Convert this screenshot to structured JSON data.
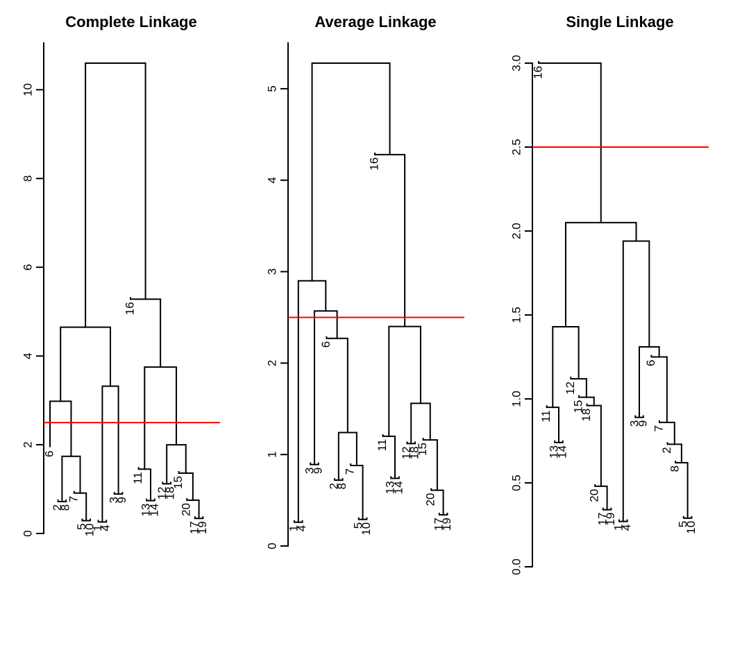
{
  "chart_data": [
    {
      "type": "dendrogram",
      "title": "Complete Linkage",
      "yticks": [
        "0",
        "2",
        "4",
        "6",
        "8",
        "10"
      ],
      "ylim": [
        0,
        10.6
      ],
      "cut_height": 2.5,
      "cut_color": "#ff0000",
      "leaves": [
        {
          "label": "6",
          "h": 1.93
        },
        {
          "label": "2",
          "h": 0.72
        },
        {
          "label": "8",
          "h": 0.72
        },
        {
          "label": "7",
          "h": 0.91
        },
        {
          "label": "5",
          "h": 0.29
        },
        {
          "label": "10",
          "h": 0.29
        },
        {
          "label": "1",
          "h": 0.26
        },
        {
          "label": "4",
          "h": 0.26
        },
        {
          "label": "3",
          "h": 0.89
        },
        {
          "label": "9",
          "h": 0.89
        },
        {
          "label": "16",
          "h": 5.28
        },
        {
          "label": "11",
          "h": 1.45
        },
        {
          "label": "13",
          "h": 0.74
        },
        {
          "label": "14",
          "h": 0.74
        },
        {
          "label": "12",
          "h": 1.12
        },
        {
          "label": "18",
          "h": 1.12
        },
        {
          "label": "15",
          "h": 1.36
        },
        {
          "label": "20",
          "h": 0.75
        },
        {
          "label": "17",
          "h": 0.34
        },
        {
          "label": "19",
          "h": 0.34
        }
      ],
      "merges": [
        {
          "a": 4,
          "b": 5,
          "h": 0.29
        },
        {
          "a": 6,
          "b": 7,
          "h": 0.26
        },
        {
          "a": 18,
          "b": 19,
          "h": 0.34
        },
        {
          "a": 1,
          "b": 2,
          "h": 0.72
        },
        {
          "a": 12,
          "b": 13,
          "h": 0.74
        },
        {
          "a": 17,
          "c": 2,
          "h": 0.75
        },
        {
          "a": 8,
          "b": 9,
          "h": 0.89
        },
        {
          "a": 3,
          "c": 0,
          "h": 0.91
        },
        {
          "a": 14,
          "b": 15,
          "h": 1.12
        },
        {
          "a": 16,
          "c": 5,
          "h": 1.36
        },
        {
          "a": 11,
          "c": 4,
          "h": 1.45
        },
        {
          "c": 3,
          "d": 7,
          "h": 1.74
        },
        {
          "c": 8,
          "d": 9,
          "h": 2.0
        },
        {
          "a": 0,
          "c": 11,
          "h": 2.98
        },
        {
          "c": 1,
          "d": 6,
          "h": 3.32
        },
        {
          "c": 10,
          "d": 12,
          "h": 3.75
        },
        {
          "c": 13,
          "d": 14,
          "h": 4.65
        },
        {
          "a": 10,
          "c": 15,
          "h": 5.28
        },
        {
          "c": 16,
          "d": 17,
          "h": 10.6
        }
      ]
    },
    {
      "type": "dendrogram",
      "title": "Average Linkage",
      "yticks": [
        "0",
        "1",
        "2",
        "3",
        "4",
        "5"
      ],
      "ylim": [
        0,
        5.28
      ],
      "cut_height": 2.5,
      "cut_color": "#ff0000",
      "leaves": [
        {
          "label": "1",
          "h": 0.26
        },
        {
          "label": "4",
          "h": 0.26
        },
        {
          "label": "3",
          "h": 0.89
        },
        {
          "label": "9",
          "h": 0.89
        },
        {
          "label": "6",
          "h": 2.27
        },
        {
          "label": "2",
          "h": 0.72
        },
        {
          "label": "8",
          "h": 0.72
        },
        {
          "label": "7",
          "h": 0.88
        },
        {
          "label": "5",
          "h": 0.29
        },
        {
          "label": "10",
          "h": 0.29
        },
        {
          "label": "16",
          "h": 4.28
        },
        {
          "label": "11",
          "h": 1.2
        },
        {
          "label": "13",
          "h": 0.74
        },
        {
          "label": "14",
          "h": 0.74
        },
        {
          "label": "12",
          "h": 1.12
        },
        {
          "label": "18",
          "h": 1.12
        },
        {
          "label": "15",
          "h": 1.16
        },
        {
          "label": "20",
          "h": 0.61
        },
        {
          "label": "17",
          "h": 0.34
        },
        {
          "label": "19",
          "h": 0.34
        }
      ],
      "merges": [
        {
          "a": 0,
          "b": 1,
          "h": 0.26
        },
        {
          "a": 8,
          "b": 9,
          "h": 0.29
        },
        {
          "a": 18,
          "b": 19,
          "h": 0.34
        },
        {
          "a": 17,
          "c": 2,
          "h": 0.61
        },
        {
          "a": 5,
          "b": 6,
          "h": 0.72
        },
        {
          "a": 12,
          "b": 13,
          "h": 0.74
        },
        {
          "a": 7,
          "c": 1,
          "h": 0.88
        },
        {
          "a": 2,
          "b": 3,
          "h": 0.89
        },
        {
          "a": 14,
          "b": 15,
          "h": 1.12
        },
        {
          "a": 16,
          "c": 3,
          "h": 1.16
        },
        {
          "a": 11,
          "c": 5,
          "h": 1.2
        },
        {
          "c": 4,
          "d": 6,
          "h": 1.24
        },
        {
          "c": 8,
          "d": 9,
          "h": 1.56
        },
        {
          "a": 4,
          "c": 11,
          "h": 2.27
        },
        {
          "c": 10,
          "d": 12,
          "h": 2.4
        },
        {
          "c": 7,
          "d": 13,
          "h": 2.57
        },
        {
          "c": 0,
          "d": 15,
          "h": 2.9
        },
        {
          "a": 10,
          "c": 14,
          "h": 4.28
        },
        {
          "c": 16,
          "d": 17,
          "h": 5.28
        }
      ]
    },
    {
      "type": "dendrogram",
      "title": "Single Linkage",
      "yticks": [
        "0.0",
        "0.5",
        "1.0",
        "1.5",
        "2.0",
        "2.5",
        "3.0"
      ],
      "ylim": [
        0,
        3.0
      ],
      "cut_height": 2.5,
      "cut_color": "#ff0000",
      "leaves": [
        {
          "label": "16",
          "h": 3.0
        },
        {
          "label": "11",
          "h": 0.95
        },
        {
          "label": "13",
          "h": 0.74
        },
        {
          "label": "14",
          "h": 0.74
        },
        {
          "label": "12",
          "h": 1.12
        },
        {
          "label": "15",
          "h": 1.01
        },
        {
          "label": "18",
          "h": 0.96
        },
        {
          "label": "20",
          "h": 0.48
        },
        {
          "label": "17",
          "h": 0.34
        },
        {
          "label": "19",
          "h": 0.34
        },
        {
          "label": "1",
          "h": 0.27
        },
        {
          "label": "4",
          "h": 0.27
        },
        {
          "label": "3",
          "h": 0.89
        },
        {
          "label": "9",
          "h": 0.89
        },
        {
          "label": "6",
          "h": 1.25
        },
        {
          "label": "7",
          "h": 0.86
        },
        {
          "label": "2",
          "h": 0.73
        },
        {
          "label": "8",
          "h": 0.62
        },
        {
          "label": "5",
          "h": 0.29
        },
        {
          "label": "10",
          "h": 0.29
        }
      ],
      "merges": [
        {
          "a": 10,
          "b": 11,
          "h": 0.27
        },
        {
          "a": 18,
          "b": 19,
          "h": 0.29
        },
        {
          "a": 8,
          "b": 9,
          "h": 0.34
        },
        {
          "a": 7,
          "c": 2,
          "h": 0.48
        },
        {
          "a": 17,
          "c": 1,
          "h": 0.62
        },
        {
          "a": 16,
          "c": 4,
          "h": 0.73
        },
        {
          "a": 2,
          "b": 3,
          "h": 0.74
        },
        {
          "a": 15,
          "c": 5,
          "h": 0.86
        },
        {
          "a": 12,
          "b": 13,
          "h": 0.89
        },
        {
          "a": 1,
          "c": 6,
          "h": 0.95
        },
        {
          "a": 6,
          "c": 3,
          "h": 0.96
        },
        {
          "a": 5,
          "c": 10,
          "h": 1.01
        },
        {
          "a": 4,
          "c": 11,
          "h": 1.12
        },
        {
          "a": 14,
          "c": 7,
          "h": 1.25
        },
        {
          "c": 8,
          "d": 13,
          "h": 1.31
        },
        {
          "c": 9,
          "d": 12,
          "h": 1.43
        },
        {
          "c": 0,
          "d": 14,
          "h": 1.94
        },
        {
          "c": 15,
          "d": 16,
          "h": 2.05
        },
        {
          "a": 0,
          "c": 17,
          "h": 3.0
        }
      ]
    }
  ]
}
